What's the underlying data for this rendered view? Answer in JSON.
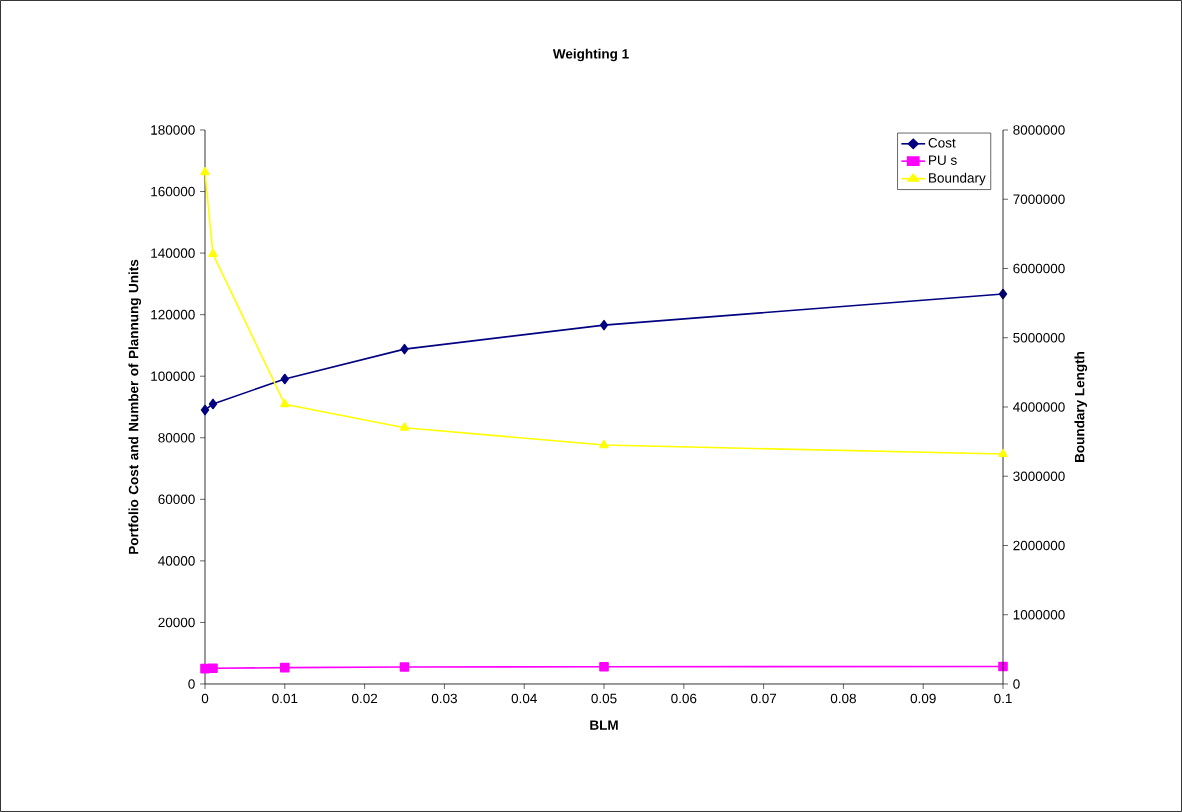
{
  "chart_data": {
    "type": "line",
    "title": "Weighting 1",
    "xlabel": "BLM",
    "ylabel": "Portfolio Cost and Number of Plannung Units",
    "y2label": "Boundary Length",
    "x": [
      0,
      0.001,
      0.01,
      0.025,
      0.05,
      0.1
    ],
    "series": [
      {
        "name": "Cost",
        "color": "#000080",
        "marker": "diamond",
        "values": [
          89000,
          91000,
          99100,
          108800,
          116600,
          126700
        ]
      },
      {
        "name": "PU s",
        "color": "#ff00ff",
        "marker": "square",
        "values": [
          5000,
          5100,
          5300,
          5500,
          5600,
          5700
        ]
      },
      {
        "name": "Boundary",
        "color": "#ffff00",
        "marker": "triangle",
        "axis": "y2",
        "values": [
          7390000,
          6210000,
          4040000,
          3700000,
          3450000,
          3320000
        ]
      }
    ],
    "xlim": [
      0,
      0.1
    ],
    "xticks": [
      0,
      0.01,
      0.02,
      0.03,
      0.04,
      0.05,
      0.06,
      0.07,
      0.08,
      0.09,
      0.1
    ],
    "ylim": [
      0,
      180000
    ],
    "yticks": [
      0,
      20000,
      40000,
      60000,
      80000,
      100000,
      120000,
      140000,
      160000,
      180000
    ],
    "y2lim": [
      0,
      8000000
    ],
    "y2ticks": [
      0,
      1000000,
      2000000,
      3000000,
      4000000,
      5000000,
      6000000,
      7000000,
      8000000
    ],
    "grid": false,
    "legend": "top right"
  }
}
